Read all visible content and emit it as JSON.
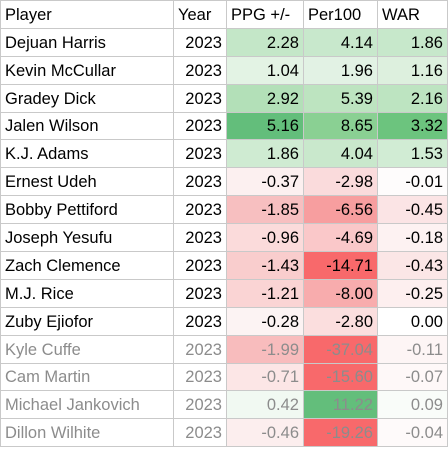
{
  "headers": [
    "Player",
    "Year",
    "PPG +/-",
    "Per100",
    "WAR"
  ],
  "rows": [
    {
      "player": "Dejuan Harris",
      "year": "2023",
      "ppg": "2.28",
      "per100": "4.14",
      "war": "1.86",
      "dim": false,
      "ppg_color": "#c4e7c8",
      "per100_color": "#c8e8cc",
      "war_color": "#c7e8cb"
    },
    {
      "player": "Kevin McCullar",
      "year": "2023",
      "ppg": "1.04",
      "per100": "1.96",
      "war": "1.16",
      "dim": false,
      "ppg_color": "#e3f3e4",
      "per100_color": "#e2f2e4",
      "war_color": "#ddf0de"
    },
    {
      "player": "Gradey Dick",
      "year": "2023",
      "ppg": "2.92",
      "per100": "5.39",
      "war": "2.16",
      "dim": false,
      "ppg_color": "#b3e0b8",
      "per100_color": "#bde4c0",
      "war_color": "#bde4c1"
    },
    {
      "player": "Jalen Wilson",
      "year": "2023",
      "ppg": "5.16",
      "per100": "8.65",
      "war": "3.32",
      "dim": false,
      "ppg_color": "#63be7b",
      "per100_color": "#8ad093",
      "war_color": "#6cc47e"
    },
    {
      "player": "K.J. Adams",
      "year": "2023",
      "ppg": "1.86",
      "per100": "4.04",
      "war": "1.53",
      "dim": false,
      "ppg_color": "#cfebd2",
      "per100_color": "#c9e8cc",
      "war_color": "#d1ecd4"
    },
    {
      "player": "Ernest Udeh",
      "year": "2023",
      "ppg": "-0.37",
      "per100": "-2.98",
      "war": "-0.01",
      "dim": false,
      "ppg_color": "#fcf0f0",
      "per100_color": "#fadbdc",
      "war_color": "#fefcfc"
    },
    {
      "player": "Bobby Pettiford",
      "year": "2023",
      "ppg": "-1.85",
      "per100": "-6.56",
      "war": "-0.45",
      "dim": false,
      "ppg_color": "#f7bfc0",
      "per100_color": "#f79e9f",
      "war_color": "#fbe4e5"
    },
    {
      "player": "Joseph Yesufu",
      "year": "2023",
      "ppg": "-0.96",
      "per100": "-4.69",
      "war": "-0.18",
      "dim": false,
      "ppg_color": "#fbdbdb",
      "per100_color": "#fac8c9",
      "war_color": "#fdf2f2"
    },
    {
      "player": "Zach Clemence",
      "year": "2023",
      "ppg": "-1.43",
      "per100": "-14.71",
      "war": "-0.43",
      "dim": false,
      "ppg_color": "#f9cdcd",
      "per100_color": "#f8696b",
      "war_color": "#fbe6e6"
    },
    {
      "player": "M.J. Rice",
      "year": "2023",
      "ppg": "-1.21",
      "per100": "-8.00",
      "war": "-0.25",
      "dim": false,
      "ppg_color": "#fad4d4",
      "per100_color": "#f8acad",
      "war_color": "#fdefef"
    },
    {
      "player": "Zuby Ejiofor",
      "year": "2023",
      "ppg": "-0.28",
      "per100": "-2.80",
      "war": "0.00",
      "dim": false,
      "ppg_color": "#fcf3f3",
      "per100_color": "#fbdede",
      "war_color": "#ffffff"
    },
    {
      "player": "Kyle Cuffe",
      "year": "2023",
      "ppg": "-1.99",
      "per100": "-37.04",
      "war": "-0.11",
      "dim": true,
      "ppg_color": "#f8bcbd",
      "per100_color": "#f8696b",
      "war_color": "#fdf5f5"
    },
    {
      "player": "Cam Martin",
      "year": "2023",
      "ppg": "-0.71",
      "per100": "-15.60",
      "war": "-0.07",
      "dim": true,
      "ppg_color": "#fce6e6",
      "per100_color": "#f8696b",
      "war_color": "#fef8f8"
    },
    {
      "player": "Michael Jankovich",
      "year": "2023",
      "ppg": "0.42",
      "per100": "11.22",
      "war": "0.09",
      "dim": true,
      "ppg_color": "#f1f9f2",
      "per100_color": "#63be7b",
      "war_color": "#f9fcf9"
    },
    {
      "player": "Dillon Wilhite",
      "year": "2023",
      "ppg": "-0.46",
      "per100": "-19.26",
      "war": "-0.04",
      "dim": true,
      "ppg_color": "#fceeee",
      "per100_color": "#f8696b",
      "war_color": "#fefafa"
    }
  ]
}
